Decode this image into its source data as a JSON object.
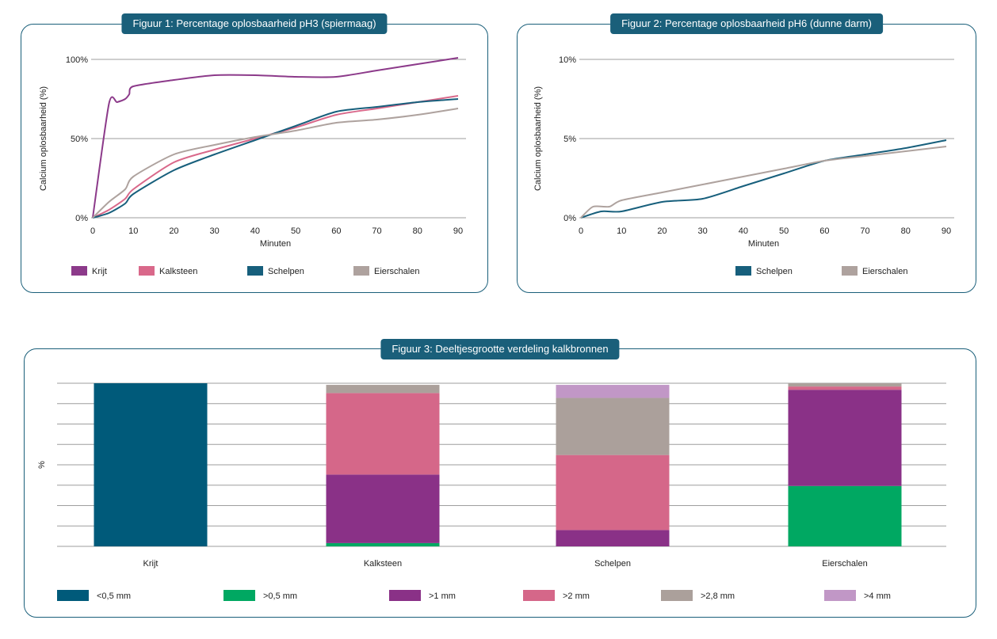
{
  "colors": {
    "accent": "#1a5f7a",
    "grid": "#9e9e9e",
    "krijt": "#8c3a8a",
    "kalksteen": "#d9688a",
    "schelpen": "#175f7c",
    "eierschalen": "#aea29e",
    "lt05": "#005a7a",
    "gt05": "#00a862",
    "gt1": "#8a3187",
    "gt2": "#d56789",
    "gt28": "#aba09b",
    "gt4": "#c197c6"
  },
  "chart_data": [
    {
      "type": "line",
      "title": "Figuur 1: Percentage oplosbaarheid pH3 (spiermaag)",
      "xlabel": "Minuten",
      "ylabel": "Calcium oplosbaarheid (%)",
      "xticks": [
        "0",
        "10",
        "20",
        "30",
        "40",
        "50",
        "60",
        "70",
        "80",
        "90"
      ],
      "yticks": [
        "0%",
        "50%",
        "100%"
      ],
      "ylim": [
        0,
        100
      ],
      "grid": true,
      "legend_position": "bottom",
      "series": [
        {
          "name": "Krijt",
          "color": "krijt",
          "points": [
            [
              0,
              0
            ],
            [
              4,
              72
            ],
            [
              6,
              73
            ],
            [
              8,
              75
            ],
            [
              9,
              78
            ],
            [
              10,
              83
            ],
            [
              20,
              87
            ],
            [
              30,
              90
            ],
            [
              40,
              90
            ],
            [
              50,
              89
            ],
            [
              60,
              89
            ],
            [
              70,
              93
            ],
            [
              80,
              97
            ],
            [
              90,
              101
            ]
          ]
        },
        {
          "name": "Kalksteen",
          "color": "kalksteen",
          "points": [
            [
              0,
              0
            ],
            [
              4,
              5
            ],
            [
              8,
              12
            ],
            [
              10,
              18
            ],
            [
              20,
              35
            ],
            [
              30,
              43
            ],
            [
              40,
              50
            ],
            [
              50,
              57
            ],
            [
              60,
              65
            ],
            [
              70,
              69
            ],
            [
              80,
              73
            ],
            [
              90,
              77
            ]
          ]
        },
        {
          "name": "Schelpen",
          "color": "schelpen",
          "points": [
            [
              0,
              0
            ],
            [
              4,
              3
            ],
            [
              8,
              9
            ],
            [
              10,
              15
            ],
            [
              20,
              30
            ],
            [
              30,
              40
            ],
            [
              40,
              49
            ],
            [
              50,
              58
            ],
            [
              60,
              67
            ],
            [
              70,
              70
            ],
            [
              80,
              73
            ],
            [
              90,
              75
            ]
          ]
        },
        {
          "name": "Eierschalen",
          "color": "eierschalen",
          "points": [
            [
              0,
              0
            ],
            [
              4,
              10
            ],
            [
              8,
              18
            ],
            [
              10,
              26
            ],
            [
              20,
              40
            ],
            [
              30,
              46
            ],
            [
              40,
              51
            ],
            [
              50,
              55
            ],
            [
              60,
              60
            ],
            [
              70,
              62
            ],
            [
              80,
              65
            ],
            [
              90,
              69
            ]
          ]
        }
      ]
    },
    {
      "type": "line",
      "title": "Figuur 2: Percentage oplosbaarheid pH6 (dunne darm)",
      "xlabel": "Minuten",
      "ylabel": "Calcium oplosbaarheid (%)",
      "xticks": [
        "0",
        "10",
        "20",
        "30",
        "40",
        "50",
        "60",
        "70",
        "80",
        "90"
      ],
      "yticks": [
        "0%",
        "5%",
        "10%"
      ],
      "ylim": [
        0,
        10
      ],
      "grid": true,
      "legend_position": "bottom",
      "series": [
        {
          "name": "Schelpen",
          "color": "schelpen",
          "points": [
            [
              0,
              0
            ],
            [
              5,
              0.4
            ],
            [
              10,
              0.4
            ],
            [
              20,
              1
            ],
            [
              30,
              1.2
            ],
            [
              40,
              2
            ],
            [
              50,
              2.8
            ],
            [
              60,
              3.6
            ],
            [
              70,
              4
            ],
            [
              80,
              4.4
            ],
            [
              90,
              4.9
            ]
          ]
        },
        {
          "name": "Eierschalen",
          "color": "eierschalen",
          "points": [
            [
              0,
              0
            ],
            [
              3,
              0.7
            ],
            [
              7,
              0.7
            ],
            [
              10,
              1.1
            ],
            [
              20,
              1.6
            ],
            [
              30,
              2.1
            ],
            [
              40,
              2.6
            ],
            [
              50,
              3.1
            ],
            [
              60,
              3.6
            ],
            [
              70,
              3.9
            ],
            [
              80,
              4.2
            ],
            [
              90,
              4.5
            ]
          ]
        }
      ]
    },
    {
      "type": "bar",
      "stacked": true,
      "title": "Figuur 3: Deeltjesgrootte verdeling kalkbronnen",
      "ylabel": "%",
      "ylim": [
        0,
        100
      ],
      "grid": true,
      "legend_position": "bottom",
      "categories": [
        "Krijt",
        "Kalksteen",
        "Schelpen",
        "Eierschalen"
      ],
      "series": [
        {
          "name": "<0,5 mm",
          "color": "lt05",
          "values": [
            100,
            0,
            0,
            0
          ]
        },
        {
          "name": ">0,5 mm",
          "color": "gt05",
          "values": [
            0,
            2,
            0,
            37
          ]
        },
        {
          "name": ">1 mm",
          "color": "gt1",
          "values": [
            0,
            42,
            10,
            59
          ]
        },
        {
          "name": ">2 mm",
          "color": "gt2",
          "values": [
            0,
            50,
            46,
            2
          ]
        },
        {
          "name": ">2,8 mm",
          "color": "gt28",
          "values": [
            0,
            5,
            35,
            2
          ]
        },
        {
          "name": ">4 mm",
          "color": "gt4",
          "values": [
            0,
            0,
            8,
            0
          ]
        }
      ]
    }
  ]
}
